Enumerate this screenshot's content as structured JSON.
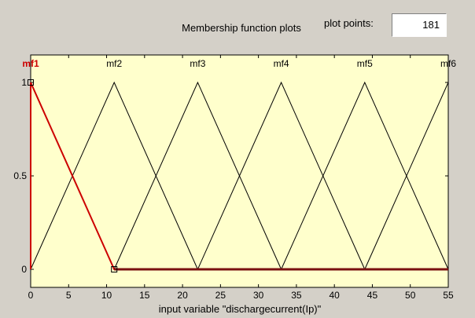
{
  "header": {
    "title": "Membership function plots",
    "plot_points_label": "plot points:",
    "plot_points_value": "181"
  },
  "colors": {
    "plot_background": "#ffffcc",
    "panel_background": "#d4d0c8",
    "selected_mf": "#cc0000",
    "mf_line": "#000000"
  },
  "chart_data": {
    "type": "line",
    "xlabel": "input variable \"dischargecurrent(Ip)\"",
    "xlim": [
      0,
      55
    ],
    "ylim": [
      0,
      1
    ],
    "x_ticks": [
      "0",
      "5",
      "10",
      "15",
      "20",
      "25",
      "30",
      "35",
      "40",
      "45",
      "50",
      "55"
    ],
    "y_ticks": [
      "0",
      "0.5",
      "1"
    ],
    "selected_series": "mf1",
    "series": [
      {
        "name": "mf1",
        "x": [
          0,
          0,
          11,
          55
        ],
        "y": [
          0,
          1,
          0,
          0
        ]
      },
      {
        "name": "mf2",
        "x": [
          0,
          11,
          22
        ],
        "y": [
          0,
          1,
          0
        ]
      },
      {
        "name": "mf3",
        "x": [
          11,
          22,
          33
        ],
        "y": [
          0,
          1,
          0
        ]
      },
      {
        "name": "mf4",
        "x": [
          22,
          33,
          44
        ],
        "y": [
          0,
          1,
          0
        ]
      },
      {
        "name": "mf5",
        "x": [
          33,
          44,
          55
        ],
        "y": [
          0,
          1,
          0
        ]
      },
      {
        "name": "mf6",
        "x": [
          44,
          55,
          55
        ],
        "y": [
          0,
          1,
          0
        ]
      }
    ],
    "label_positions_x": [
      0,
      11,
      22,
      33,
      44,
      55
    ]
  }
}
